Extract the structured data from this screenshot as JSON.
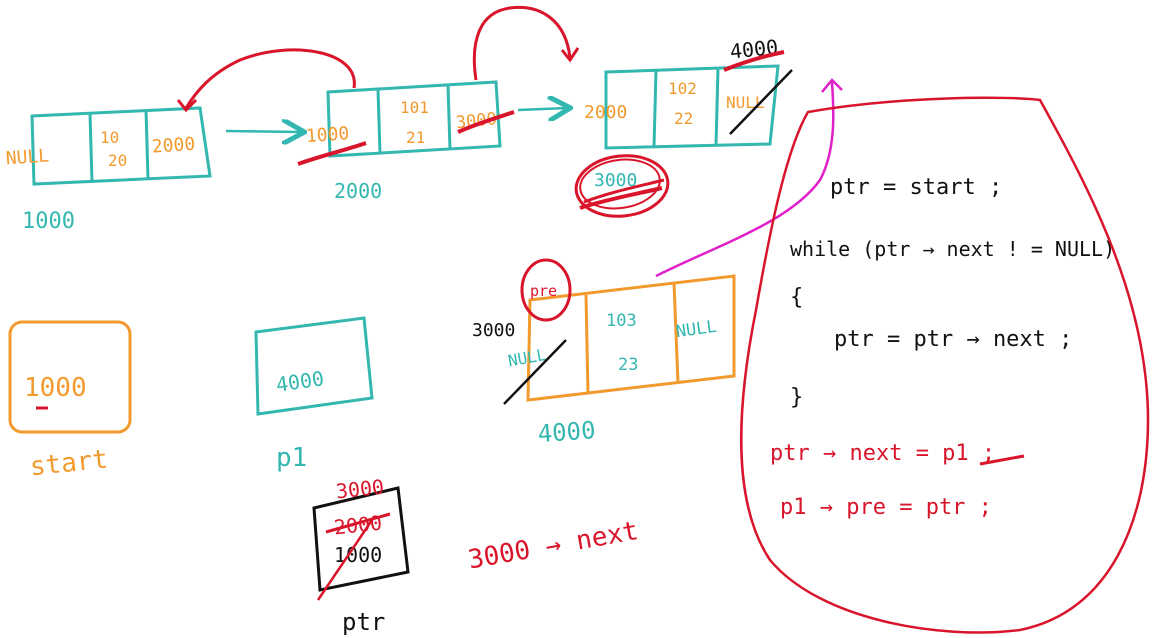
{
  "colors": {
    "teal": "#33b7b0",
    "orange": "#f29a2e",
    "red": "#d9152b",
    "black": "#111111",
    "magenta": "#e020c8"
  },
  "nodes": [
    {
      "prev": "NULL",
      "data_top": "10",
      "data_bottom": "20",
      "next": "2000",
      "address": "1000"
    },
    {
      "prev": "1000",
      "data_top": "101",
      "data_bottom": "21",
      "next": "3000",
      "address": "2000"
    },
    {
      "prev": "2000",
      "data_top": "102",
      "data_bottom": "22",
      "next": "NULL",
      "next_overwrite": "4000"
    }
  ],
  "crossed_value": "3000",
  "new_node": {
    "prev_label": "pre",
    "prev_old": "NULL",
    "prev_new": "3000",
    "data_top": "103",
    "data_bottom": "23",
    "next": "NULL",
    "address": "4000"
  },
  "start_box": {
    "value": "1000",
    "label": "start"
  },
  "p1_box": {
    "value": "4000",
    "label": "p1"
  },
  "ptr_box": {
    "values": [
      "3000",
      "2000",
      "1000"
    ],
    "label": "ptr"
  },
  "note_left": "3000 → next",
  "code": {
    "lines": [
      "ptr = start ;",
      "while (ptr → next ! = NULL)",
      "{",
      "ptr = ptr → next ;",
      "}"
    ],
    "red_lines": [
      "ptr → next = p1 ;",
      "p1 → pre = ptr ;"
    ]
  }
}
